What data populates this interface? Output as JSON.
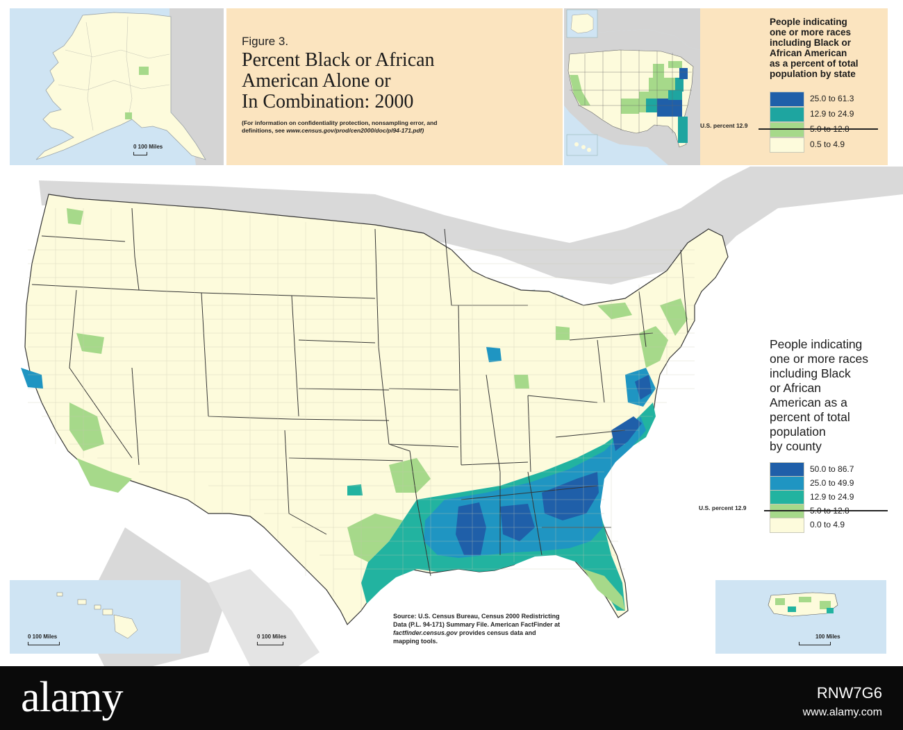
{
  "header": {
    "figure_label": "Figure 3.",
    "title_lines": [
      "Percent Black or African",
      "American Alone or",
      "In Combination:  2000"
    ],
    "note_line1": "(For information on confidentiality protection, nonsampling error, and",
    "note_line2_prefix": "definitions, see ",
    "note_line2_url": "www.census.gov/prod/cen2000/doc/pl94-171.pdf)"
  },
  "state_legend": {
    "title_lines": [
      "People indicating",
      "one or more races",
      "including Black or",
      "African American",
      "as a percent of total",
      "population by state"
    ],
    "us_percent": "U.S. percent 12.9",
    "classes": [
      {
        "label": "25.0 to 61.3",
        "color": "#1f5fa9"
      },
      {
        "label": "12.9 to 24.9",
        "color": "#1ea5a0"
      },
      {
        "label": "5.0 to 12.8",
        "color": "#a6d98a"
      },
      {
        "label": "0.5 to 4.9",
        "color": "#fdfbdc"
      }
    ]
  },
  "county_legend": {
    "title_lines": [
      "People indicating",
      "one or more races",
      "including Black",
      "or African",
      "American as a",
      "percent of total",
      "population",
      "by county"
    ],
    "us_percent": "U.S. percent 12.9",
    "classes": [
      {
        "label": "50.0 to 86.7",
        "color": "#1f5fa9"
      },
      {
        "label": "25.0 to 49.9",
        "color": "#1f95c2"
      },
      {
        "label": "12.9 to 24.9",
        "color": "#22b3a0"
      },
      {
        "label": "5.0 to 12.8",
        "color": "#a6d98a"
      },
      {
        "label": "0.0 to 4.9",
        "color": "#fdfbdc"
      }
    ]
  },
  "insets": {
    "alaska_scale": "0   100 Miles",
    "hawaii_scale": "0         100 Miles",
    "mid_scale": "0      100 Miles",
    "puerto_rico_scale": "100 Miles"
  },
  "source": {
    "line1": "Source: U.S. Census Bureau, Census 2000 Redistricting",
    "line2": "Data (P.L. 94-171) Summary File.  American FactFinder at",
    "line3_url": "factfinder.census.gov",
    "line3_rest": " provides census data and",
    "line4": "mapping tools."
  },
  "footer": {
    "logo": "alamy",
    "id": "RNW7G6",
    "url": "www.alamy.com"
  }
}
